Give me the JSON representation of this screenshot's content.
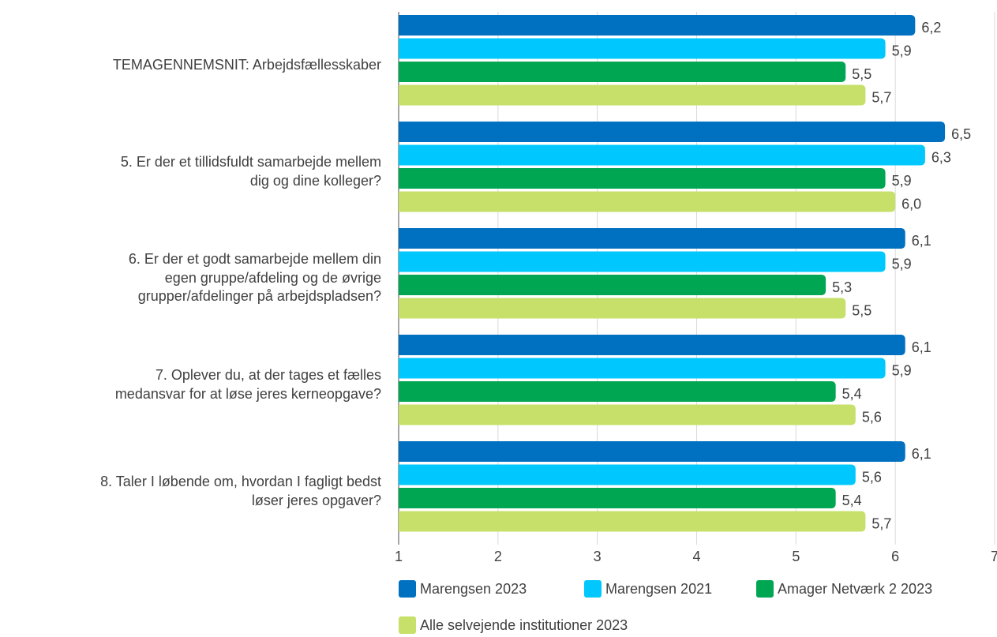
{
  "chart_data": {
    "type": "bar",
    "orientation": "horizontal",
    "categories": [
      "TEMAGENNEMSNIT: Arbejdsfællesskaber",
      "5. Er der et tillidsfuldt samarbejde mellem\ndig og dine kolleger?",
      "6. Er der et godt samarbejde mellem din\negen gruppe/afdeling og de øvrige\ngrupper/afdelinger på arbejdspladsen?",
      "7. Oplever du, at der tages et fælles\nmedansvar for at løse jeres kerneopgave?",
      "8. Taler I løbende om, hvordan I fagligt bedst\nløser jeres opgaver?"
    ],
    "series": [
      {
        "name": "Marengsen 2023",
        "color": "#0070c0",
        "values": [
          6.2,
          6.5,
          6.1,
          6.1,
          6.1
        ],
        "value_labels": [
          "6,2",
          "6,5",
          "6,1",
          "6,1",
          "6,1"
        ]
      },
      {
        "name": "Marengsen 2021",
        "color": "#00c8ff",
        "values": [
          5.9,
          6.3,
          5.9,
          5.9,
          5.6
        ],
        "value_labels": [
          "5,9",
          "6,3",
          "5,9",
          "5,9",
          "5,6"
        ]
      },
      {
        "name": "Amager Netværk 2 2023",
        "color": "#00a651",
        "values": [
          5.5,
          5.9,
          5.3,
          5.4,
          5.4
        ],
        "value_labels": [
          "5,5",
          "5,9",
          "5,3",
          "5,4",
          "5,4"
        ]
      },
      {
        "name": "Alle selvejende institutioner 2023",
        "color": "#c6e06a",
        "values": [
          5.7,
          6.0,
          5.5,
          5.6,
          5.7
        ],
        "value_labels": [
          "5,7",
          "6,0",
          "5,5",
          "5,6",
          "5,7"
        ]
      }
    ],
    "xlim": [
      1,
      7
    ],
    "xticks": [
      1,
      2,
      3,
      4,
      5,
      6,
      7
    ],
    "grid": true,
    "legend": "bottom"
  }
}
